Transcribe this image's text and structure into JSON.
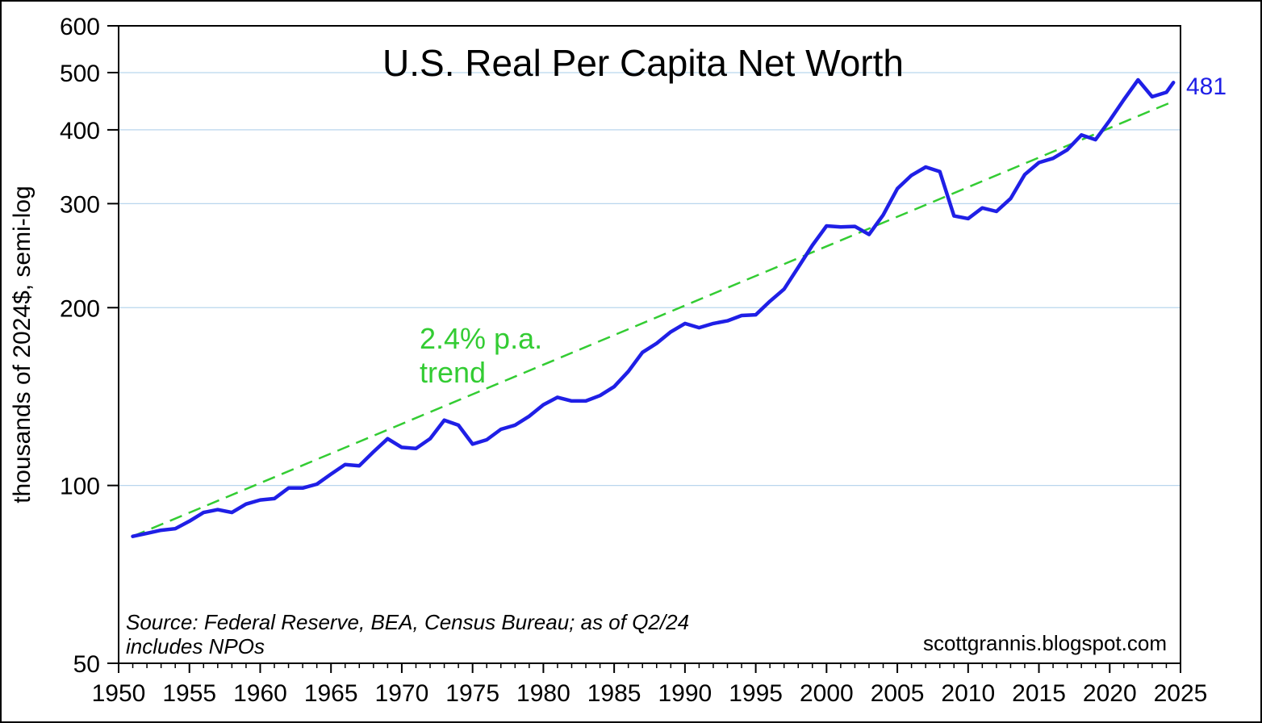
{
  "chart_data": {
    "type": "line",
    "title": "U.S. Real Per Capita Net Worth",
    "ylabel": "thousands of 2024$, semi-log",
    "xlabel": "",
    "yscale": "log",
    "ylim": [
      50,
      600
    ],
    "xlim": [
      1950,
      2025
    ],
    "yticks": [
      "50",
      "100",
      "200",
      "300",
      "400",
      "500",
      "600"
    ],
    "xticks": [
      "1950",
      "1955",
      "1960",
      "1965",
      "1970",
      "1975",
      "1980",
      "1985",
      "1990",
      "1995",
      "2000",
      "2005",
      "2010",
      "2015",
      "2020",
      "2025"
    ],
    "gridlines": "horizontal",
    "series": [
      {
        "color": "#1f1fe6",
        "x": [
          1951,
          1952,
          1953,
          1954,
          1955,
          1956,
          1957,
          1958,
          1959,
          1960,
          1961,
          1962,
          1963,
          1964,
          1965,
          1966,
          1967,
          1968,
          1969,
          1970,
          1971,
          1972,
          1973,
          1974,
          1975,
          1976,
          1977,
          1978,
          1979,
          1980,
          1981,
          1982,
          1983,
          1984,
          1985,
          1986,
          1987,
          1988,
          1989,
          1990,
          1991,
          1992,
          1993,
          1994,
          1995,
          1996,
          1997,
          1998,
          1999,
          2000,
          2001,
          2002,
          2003,
          2004,
          2005,
          2006,
          2007,
          2008,
          2009,
          2010,
          2011,
          2012,
          2013,
          2014,
          2015,
          2016,
          2017,
          2018,
          2019,
          2020,
          2021,
          2022,
          2023,
          2024,
          2024.5
        ],
        "values": [
          82,
          83,
          84,
          84.5,
          87,
          90,
          91,
          90,
          93,
          94.5,
          95,
          99,
          99,
          100.5,
          104.5,
          108.5,
          108,
          114,
          120,
          116,
          115.5,
          120,
          129,
          126.5,
          117.5,
          119.5,
          124.5,
          126.5,
          131,
          137,
          141,
          139,
          139,
          142,
          147,
          156,
          168,
          174,
          182,
          188,
          185,
          188,
          190,
          194,
          194.5,
          205,
          215,
          234,
          255,
          275,
          274,
          274.5,
          266,
          287,
          318,
          335,
          346,
          340,
          286,
          283,
          295,
          291,
          306,
          336,
          352,
          358,
          370,
          392,
          385,
          415,
          450,
          486,
          455,
          463,
          481
        ]
      },
      {
        "color": "#33cc33",
        "dashed": true,
        "x": [
          1951,
          2024.5
        ],
        "values": [
          82,
          447
        ]
      }
    ],
    "annotations": {
      "trend_label_line1": "2.4% p.a.",
      "trend_label_line2": "trend",
      "end_value_label": "481",
      "source_line1": "Source: Federal Reserve, BEA, Census Bureau; as of Q2/24",
      "source_line2": "includes NPOs",
      "credit": "scottgrannis.blogspot.com"
    },
    "colors": {
      "series": "#1f1fe6",
      "trend": "#33cc33",
      "grid": "#b9d6ee"
    }
  }
}
